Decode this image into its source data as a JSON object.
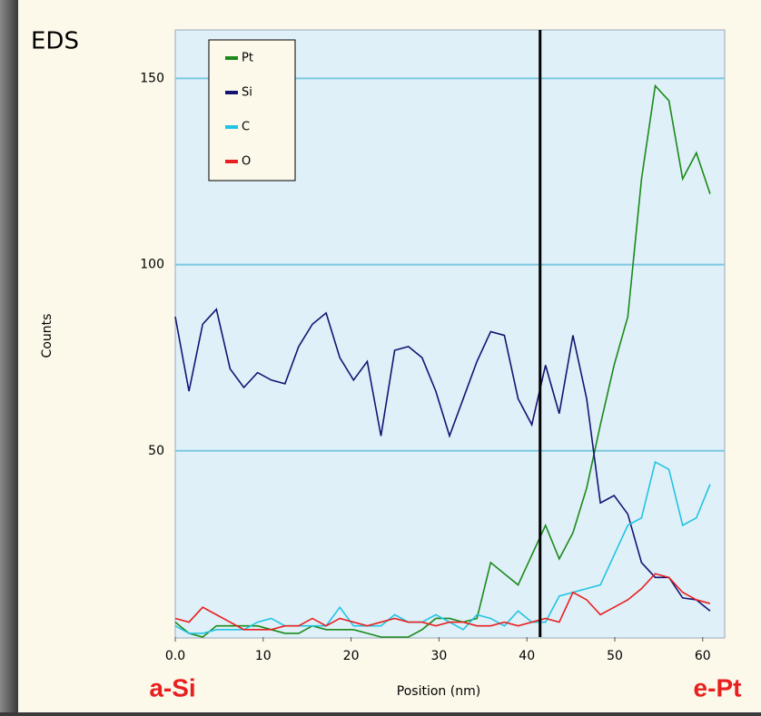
{
  "chart_data": {
    "type": "line",
    "title": "EDS",
    "xlabel": "Position (nm)",
    "ylabel": "Counts",
    "x": [
      0,
      1.56,
      3.12,
      4.68,
      6.24,
      7.8,
      9.36,
      10.92,
      12.48,
      14.04,
      15.6,
      17.16,
      18.72,
      20.28,
      21.84,
      23.4,
      24.96,
      26.52,
      28.08,
      29.64,
      31.2,
      32.76,
      34.32,
      35.88,
      37.44,
      39,
      40.56,
      42.12,
      43.68,
      45.24,
      46.8,
      48.36,
      49.92,
      51.48,
      53.04,
      54.6,
      56.16,
      57.72,
      59.28,
      60.84
    ],
    "series": [
      {
        "name": "Pt",
        "color": "#1a8a1a",
        "values": [
          4,
          1,
          0,
          3,
          3,
          3,
          3,
          2,
          1,
          1,
          3,
          2,
          2,
          2,
          1,
          0,
          0,
          0,
          2,
          5,
          5,
          4,
          5,
          20,
          17,
          14,
          22,
          30,
          21,
          28,
          40,
          57,
          73,
          86,
          123,
          148,
          144,
          123,
          130,
          119
        ]
      },
      {
        "name": "Si",
        "color": "#141472",
        "values": [
          86,
          66,
          84,
          88,
          72,
          67,
          71,
          69,
          68,
          78,
          84,
          87,
          75,
          69,
          74,
          54,
          77,
          78,
          75,
          66,
          54,
          64,
          74,
          82,
          81,
          64,
          57,
          73,
          60,
          81,
          64,
          36,
          38,
          33,
          20,
          16,
          16,
          10.5,
          10,
          7
        ]
      },
      {
        "name": "C",
        "color": "#22c4e4",
        "values": [
          3,
          1,
          1,
          2,
          2,
          2,
          4,
          5,
          3,
          3,
          3,
          3,
          8,
          3,
          3,
          3,
          6,
          4,
          4,
          6,
          4,
          2,
          6,
          5,
          3,
          7,
          4,
          4,
          11,
          12,
          13,
          14,
          22,
          30,
          32,
          47,
          45,
          30,
          32,
          41
        ]
      },
      {
        "name": "O",
        "color": "#e82020",
        "values": [
          5,
          4,
          8,
          6,
          4,
          2,
          2,
          2,
          3,
          3,
          5,
          3,
          5,
          4,
          3,
          4,
          5,
          4,
          4,
          3,
          4,
          4,
          3,
          3,
          4,
          3,
          4,
          5,
          4,
          12,
          10,
          6,
          8,
          10,
          13,
          17,
          16,
          12,
          10,
          9
        ]
      }
    ],
    "xlim": [
      0,
      62.5
    ],
    "ylim": [
      0,
      163
    ],
    "xticks": [
      {
        "value": 0,
        "label": "0.0"
      },
      10,
      20,
      30,
      40,
      50,
      60
    ],
    "yticks": [
      50,
      100,
      150
    ],
    "grid": true,
    "legend": "upper left",
    "marker_x": 41.5,
    "annotations": [
      "a-Si",
      "e-Pt"
    ]
  }
}
